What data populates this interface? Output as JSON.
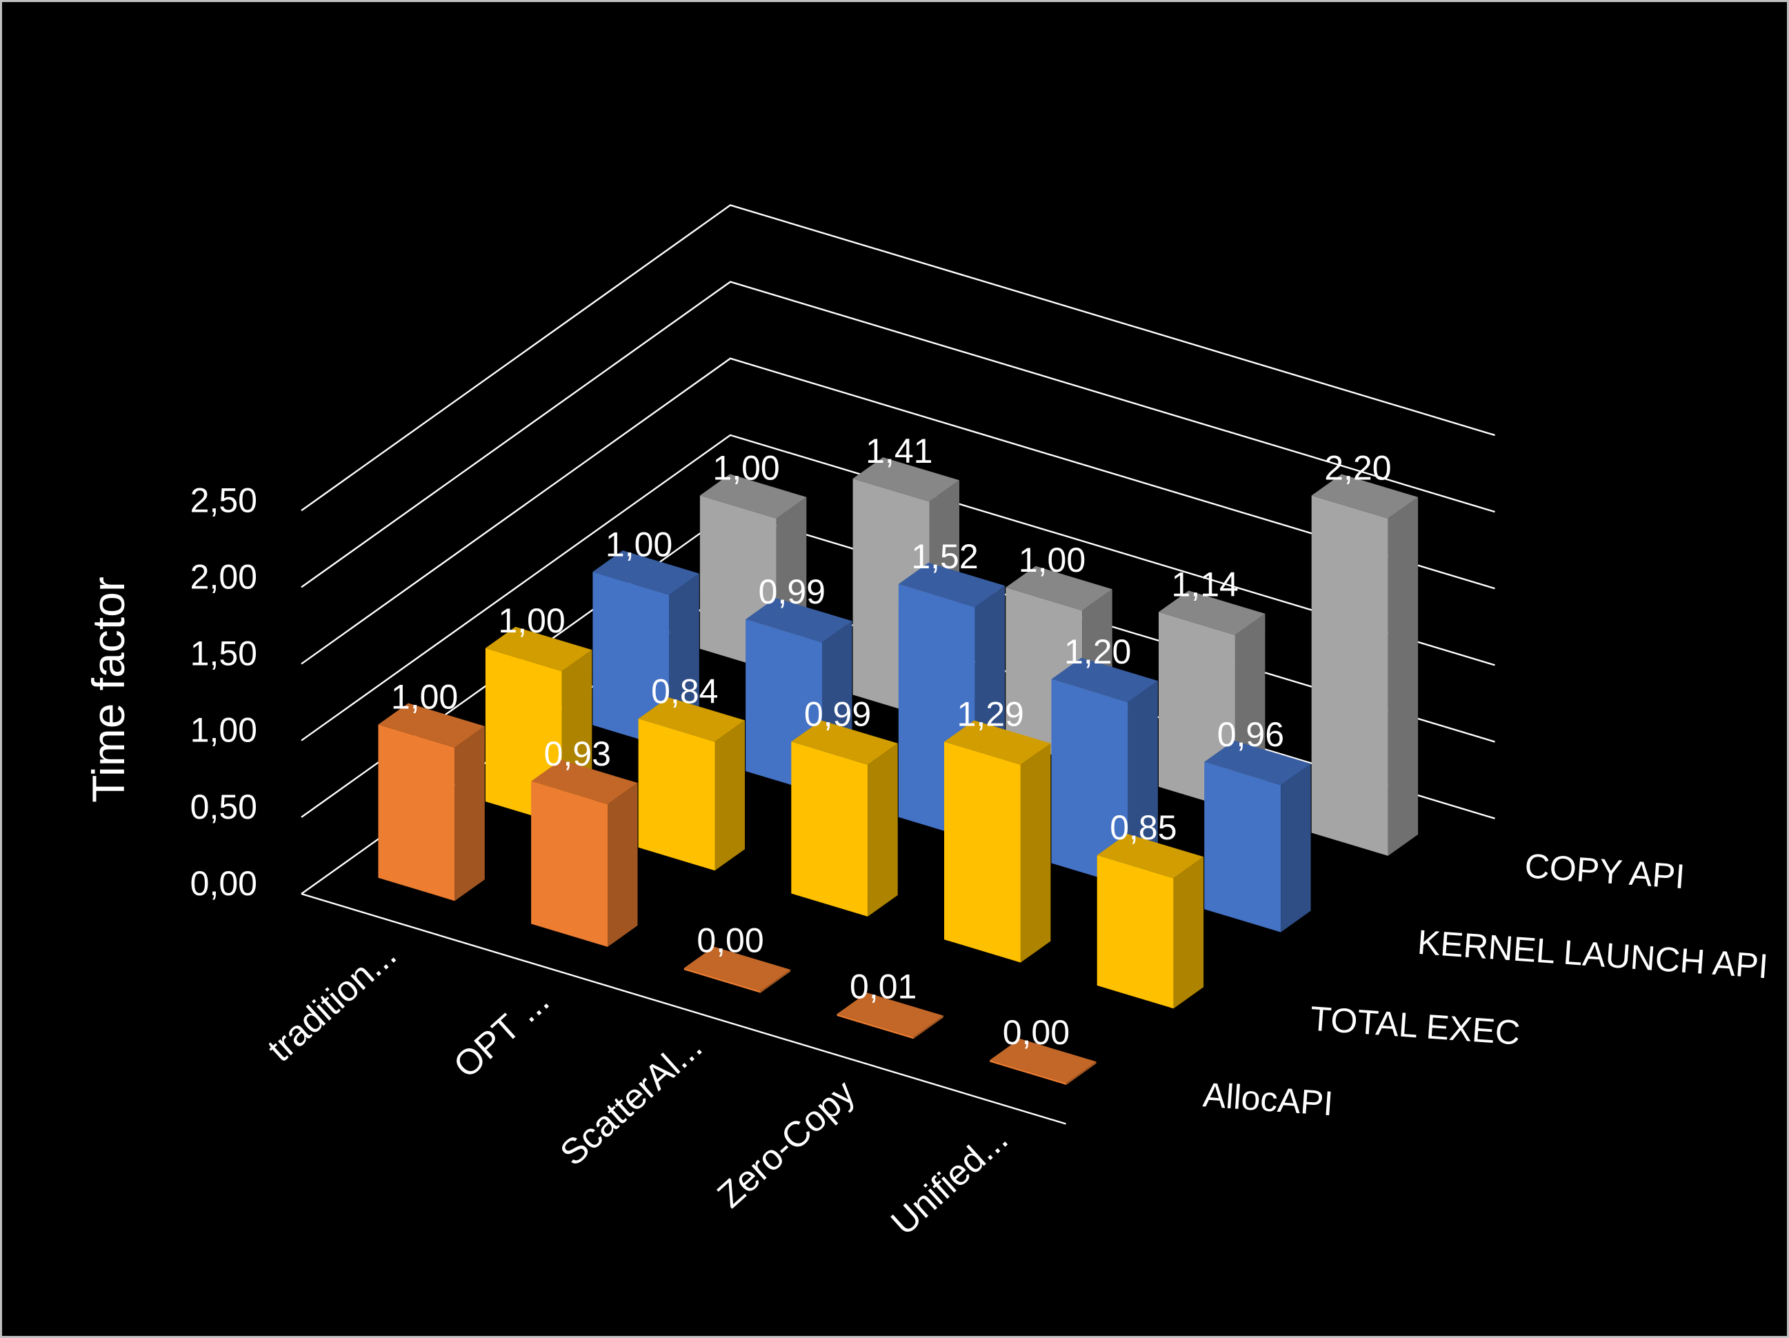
{
  "chart_data": {
    "type": "bar",
    "variant": "3d-column",
    "title": "",
    "ylabel": "Time factor",
    "xlabel": "",
    "ylim": [
      0,
      2.5
    ],
    "yticks": [
      "0,00",
      "0,50",
      "1,00",
      "1,50",
      "2,00",
      "2,50"
    ],
    "grid": true,
    "categories": [
      "tradition...",
      "OPT ...",
      "ScatterAl...",
      "Zero-Copy",
      "Unified..."
    ],
    "series": [
      {
        "name": "AllocAPI",
        "color": "#ED7D31",
        "values": [
          1.0,
          0.93,
          0.0,
          0.01,
          0.0
        ],
        "labels": [
          "1,00",
          "0,93",
          "0,00",
          "0,01",
          "0,00"
        ]
      },
      {
        "name": "TOTAL EXEC",
        "color": "#FFC000",
        "values": [
          1.0,
          0.84,
          0.99,
          1.29,
          0.85
        ],
        "labels": [
          "1,00",
          "0,84",
          "0,99",
          "1,29",
          "0,85"
        ]
      },
      {
        "name": "KERNEL LAUNCH API",
        "color": "#4472C4",
        "values": [
          1.0,
          0.99,
          1.52,
          1.2,
          0.96
        ],
        "labels": [
          "1,00",
          "0,99",
          "1,52",
          "1,20",
          "0,96"
        ]
      },
      {
        "name": "COPY API",
        "color": "#A5A5A5",
        "values": [
          1.0,
          1.41,
          1.0,
          1.14,
          2.2
        ],
        "labels": [
          "1,00",
          "1,41",
          "1,00",
          "1,14",
          "2,20"
        ]
      }
    ]
  }
}
